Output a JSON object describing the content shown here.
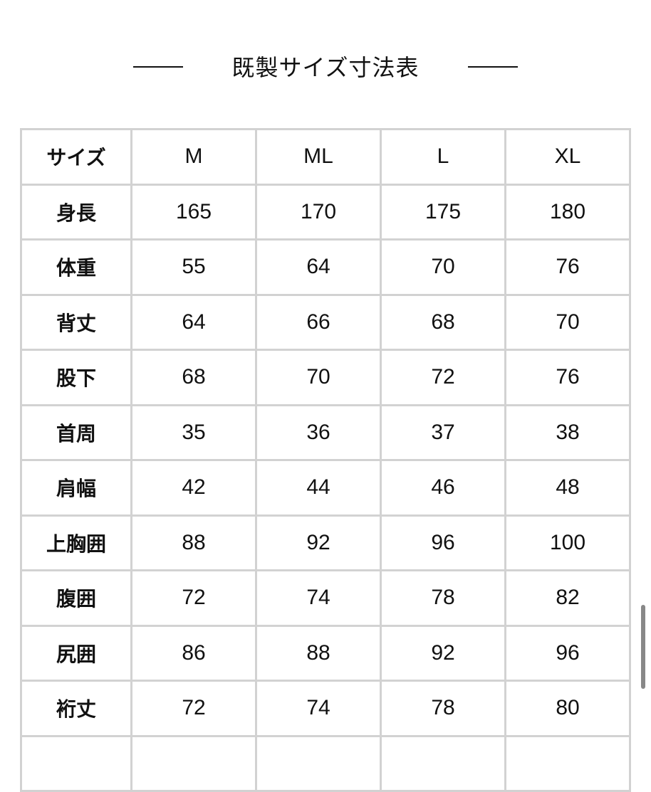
{
  "title": "既製サイズ寸法表",
  "table": {
    "header": {
      "label": "サイズ",
      "values": [
        "M",
        "ML",
        "L",
        "XL"
      ]
    },
    "rows": [
      {
        "label": "身長",
        "values": [
          "165",
          "170",
          "175",
          "180"
        ]
      },
      {
        "label": "体重",
        "values": [
          "55",
          "64",
          "70",
          "76"
        ]
      },
      {
        "label": "背丈",
        "values": [
          "64",
          "66",
          "68",
          "70"
        ]
      },
      {
        "label": "股下",
        "values": [
          "68",
          "70",
          "72",
          "76"
        ]
      },
      {
        "label": "首周",
        "values": [
          "35",
          "36",
          "37",
          "38"
        ]
      },
      {
        "label": "肩幅",
        "values": [
          "42",
          "44",
          "46",
          "48"
        ]
      },
      {
        "label": "上胸囲",
        "values": [
          "88",
          "92",
          "96",
          "100"
        ]
      },
      {
        "label": "腹囲",
        "values": [
          "72",
          "74",
          "78",
          "82"
        ]
      },
      {
        "label": "尻囲",
        "values": [
          "86",
          "88",
          "92",
          "96"
        ]
      },
      {
        "label": "裄丈",
        "values": [
          "72",
          "74",
          "78",
          "80"
        ]
      },
      {
        "label": "",
        "values": [
          "",
          "",
          "",
          ""
        ]
      }
    ]
  }
}
